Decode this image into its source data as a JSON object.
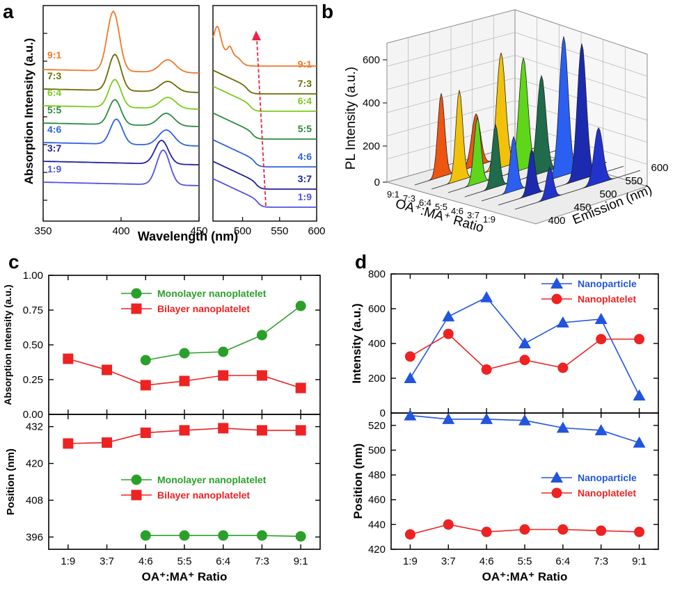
{
  "colors": {
    "green": "#2aa02a",
    "red": "#ee2222",
    "blue": "#2255dd",
    "axis": "#000000",
    "arrow": "#ee2244"
  },
  "panel_a": {
    "letter": "a",
    "xlabel": "Wavelength (nm)",
    "ylabel": "Absorption Intensity (a.u.)",
    "left_ticks": [
      "350",
      "400",
      "450"
    ],
    "right_ticks": [
      "500",
      "550",
      "600"
    ],
    "ratio_labels": [
      "9:1",
      "7:3",
      "6:4",
      "5:5",
      "4:6",
      "3:7",
      "1:9"
    ],
    "ratio_colors": [
      "#f07828",
      "#6b6b00",
      "#7acc1c",
      "#2a8a3e",
      "#3060e0",
      "#20209a",
      "#5050e8"
    ]
  },
  "panel_b": {
    "letter": "b",
    "ylabel": "PL Intensity (a.u.)",
    "ratio_axis_label": "OA⁺:MA⁺ Ratio",
    "emission_axis_label": "Emission (nm)",
    "z_ticks": [
      "0",
      "200",
      "400",
      "600"
    ],
    "ratio_ticks": [
      "9:1",
      "7:3",
      "6:4",
      "5:5",
      "4:6",
      "3:7",
      "1:9"
    ],
    "emission_ticks": [
      "400",
      "450",
      "500",
      "550",
      "600"
    ]
  },
  "chart_data": [
    {
      "id": "c-top",
      "type": "line",
      "letter": "c",
      "ylabel": "Absorption Intensity (a.u.)",
      "categories": [
        "1:9",
        "3:7",
        "4:6",
        "5:5",
        "6:4",
        "7:3",
        "9:1"
      ],
      "ylim": [
        0,
        1
      ],
      "yticks": [
        "0.00",
        "0.25",
        "0.50",
        "0.75",
        "1.00"
      ],
      "legend": "top-right",
      "series": [
        {
          "name": "Monolayer nanoplatelet",
          "marker": "circle",
          "color": "#2aa02a",
          "values": [
            null,
            null,
            0.39,
            0.44,
            0.45,
            0.57,
            0.78
          ]
        },
        {
          "name": "Bilayer nanoplatelet",
          "marker": "square",
          "color": "#ee2222",
          "values": [
            0.4,
            0.32,
            0.21,
            0.24,
            0.28,
            0.28,
            0.19
          ]
        }
      ]
    },
    {
      "id": "c-bottom",
      "type": "line",
      "ylabel": "Position (nm)",
      "xlabel": "OA⁺:MA⁺ Ratio",
      "categories": [
        "1:9",
        "3:7",
        "4:6",
        "5:5",
        "6:4",
        "7:3",
        "9:1"
      ],
      "ylim": [
        392,
        436
      ],
      "yticks": [
        "396",
        "408",
        "420",
        "432"
      ],
      "legend": "center-right",
      "series": [
        {
          "name": "Monolayer nanoplatelet",
          "marker": "circle",
          "color": "#2aa02a",
          "values": [
            null,
            null,
            396.5,
            396.5,
            396.5,
            396.5,
            396.2
          ]
        },
        {
          "name": "Bilayer nanoplatelet",
          "marker": "square",
          "color": "#ee2222",
          "values": [
            426.5,
            426.8,
            430.0,
            430.8,
            431.5,
            430.8,
            430.8
          ]
        }
      ]
    },
    {
      "id": "d-top",
      "type": "line",
      "letter": "d",
      "ylabel": "Intensity (a.u.)",
      "categories": [
        "1:9",
        "3:7",
        "4:6",
        "5:5",
        "6:4",
        "7:3",
        "9:1"
      ],
      "ylim": [
        0,
        800
      ],
      "yticks": [
        "0",
        "200",
        "400",
        "600",
        "800"
      ],
      "legend": "top-right",
      "series": [
        {
          "name": "Nanoparticle",
          "marker": "triangle",
          "color": "#2255dd",
          "values": [
            200,
            555,
            665,
            400,
            520,
            540,
            100
          ]
        },
        {
          "name": "Nanoplatelet",
          "marker": "circle",
          "color": "#ee2222",
          "values": [
            325,
            455,
            250,
            305,
            260,
            425,
            425
          ]
        }
      ]
    },
    {
      "id": "d-bottom",
      "type": "line",
      "ylabel": "Position (nm)",
      "xlabel": "OA⁺:MA⁺ Ratio",
      "categories": [
        "1:9",
        "3:7",
        "4:6",
        "5:5",
        "6:4",
        "7:3",
        "9:1"
      ],
      "ylim": [
        420,
        530
      ],
      "yticks": [
        "420",
        "440",
        "460",
        "480",
        "500",
        "520"
      ],
      "legend": "center-right",
      "series": [
        {
          "name": "Nanoparticle",
          "marker": "triangle",
          "color": "#2255dd",
          "values": [
            528,
            525,
            525,
            524,
            518,
            516,
            506
          ]
        },
        {
          "name": "Nanoplatelet",
          "marker": "circle",
          "color": "#ee2222",
          "values": [
            432,
            440,
            434,
            436,
            436,
            435,
            434
          ]
        }
      ]
    }
  ]
}
